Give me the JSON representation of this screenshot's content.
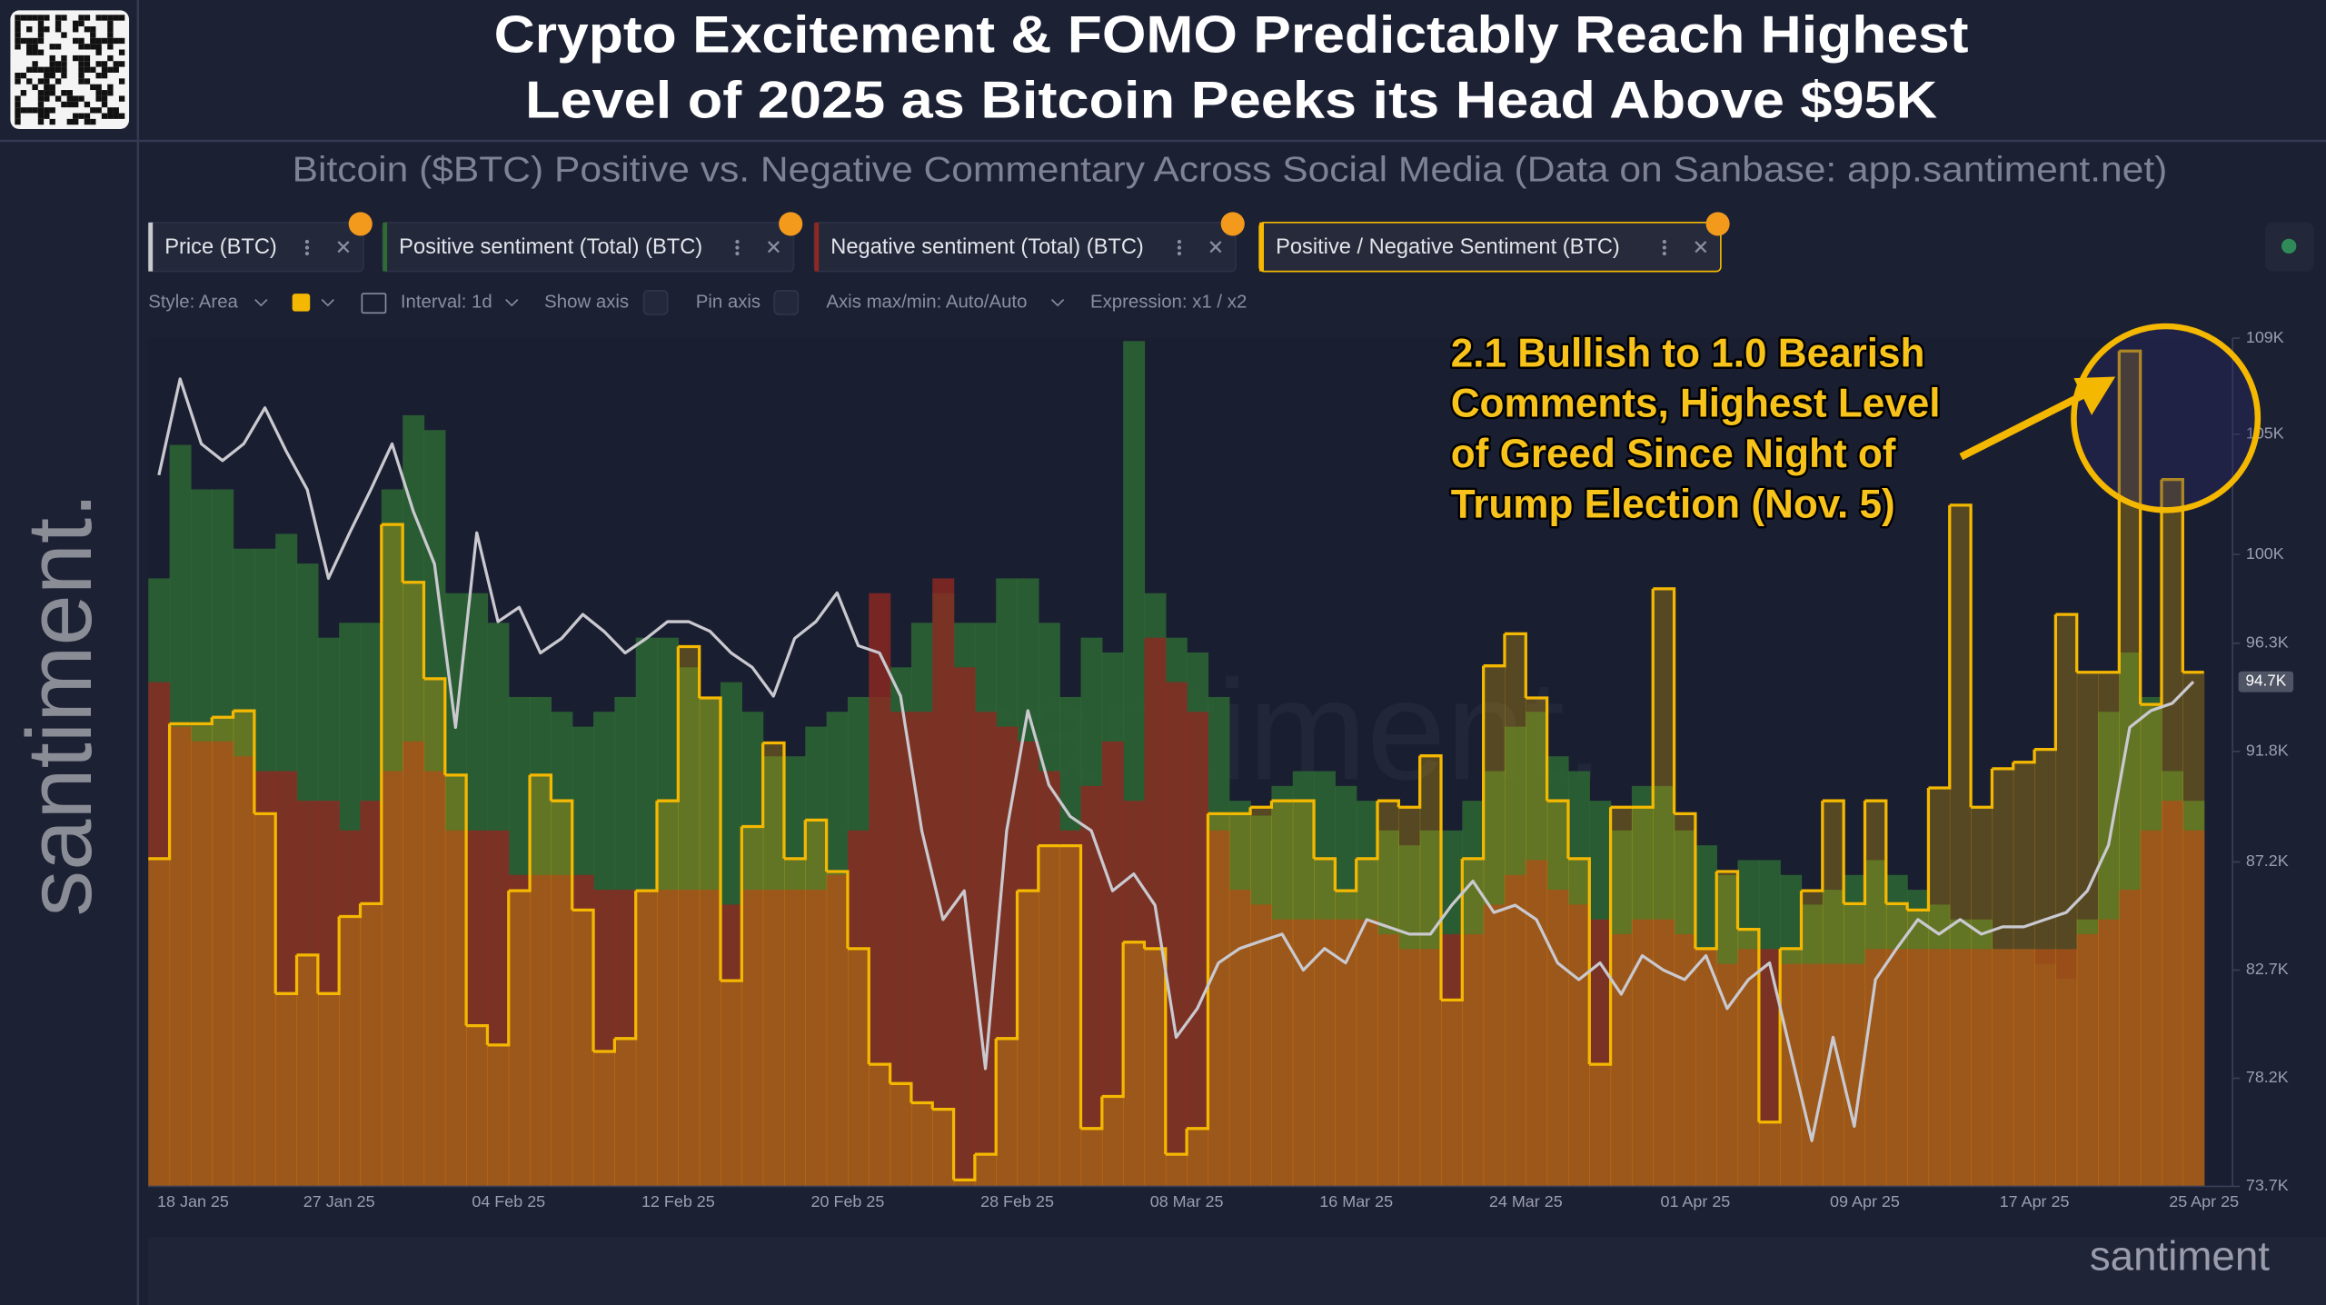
{
  "header": {
    "title_lines": [
      "Crypto Excitement & FOMO Predictably Reach Highest",
      "Level of 2025 as Bitcoin Peeks its Head Above $95K"
    ],
    "subtitle": "Bitcoin ($BTC) Positive vs. Negative Commentary Across Social Media (Data on Sanbase: app.santiment.net)"
  },
  "brand": {
    "side_logo": "santiment.",
    "watermark": "santiment.",
    "corner_logo": "santiment"
  },
  "toolbar": {
    "style": "Style: Area",
    "interval": "Interval: 1d",
    "show_axis": "Show axis",
    "pin_axis": "Pin axis",
    "axis_range": "Axis max/min: Auto/Auto",
    "expression": "Expression: x1 / x2"
  },
  "chart_data": {
    "type": "combo",
    "annotation_lines": [
      "2.1 Bullish to 1.0 Bearish",
      "Comments, Highest Level",
      "of Greed Since Night of",
      "Trump Election (Nov. 5)"
    ],
    "categories": [
      "18 Jan 25",
      null,
      null,
      null,
      null,
      null,
      null,
      null,
      null,
      "27 Jan 25",
      null,
      null,
      null,
      null,
      null,
      null,
      null,
      "04 Feb 25",
      null,
      null,
      null,
      null,
      null,
      null,
      null,
      "12 Feb 25",
      null,
      null,
      null,
      null,
      null,
      null,
      null,
      "20 Feb 25",
      null,
      null,
      null,
      null,
      null,
      null,
      null,
      "28 Feb 25",
      null,
      null,
      null,
      null,
      null,
      null,
      null,
      "08 Mar 25",
      null,
      null,
      null,
      null,
      null,
      null,
      null,
      "16 Mar 25",
      null,
      null,
      null,
      null,
      null,
      null,
      null,
      "24 Mar 25",
      null,
      null,
      null,
      null,
      null,
      null,
      null,
      "01 Apr 25",
      null,
      null,
      null,
      null,
      null,
      null,
      null,
      "09 Apr 25",
      null,
      null,
      null,
      null,
      null,
      null,
      null,
      "17 Apr 25",
      null,
      null,
      null,
      null,
      null,
      null,
      null,
      "25 Apr 25"
    ],
    "ylim": [
      73.7,
      109
    ],
    "yticks": [
      {
        "value": 73.7,
        "label": "73.7K"
      },
      {
        "value": 78.2,
        "label": "78.2K"
      },
      {
        "value": 82.7,
        "label": "82.7K"
      },
      {
        "value": 87.2,
        "label": "87.2K"
      },
      {
        "value": 91.8,
        "label": "91.8K"
      },
      {
        "value": 96.3,
        "label": "96.3K"
      },
      {
        "value": 100,
        "label": "100K"
      },
      {
        "value": 105,
        "label": "105K"
      },
      {
        "value": 109,
        "label": "109K"
      }
    ],
    "y2lim": [
      0.8,
      2.12
    ],
    "y3lim": [
      0,
      572
    ],
    "grid": false,
    "series": [
      {
        "name": "Price (BTC)",
        "type": "line",
        "axis": "y",
        "color": "#c9c9cf",
        "last_label": "94.7K",
        "values": [
          103.3,
          107.3,
          104.6,
          103.9,
          104.6,
          106.1,
          104.3,
          102.7,
          99.0,
          100.9,
          102.7,
          104.6,
          101.8,
          99.6,
          92.8,
          100.9,
          97.2,
          97.8,
          95.9,
          96.5,
          97.5,
          96.8,
          95.9,
          96.5,
          97.2,
          97.2,
          96.8,
          95.9,
          95.3,
          94.1,
          96.5,
          97.2,
          98.4,
          96.2,
          95.9,
          94.1,
          88.5,
          84.8,
          86.0,
          78.6,
          88.5,
          93.5,
          90.4,
          89.1,
          88.5,
          86.0,
          86.7,
          85.4,
          79.9,
          81.1,
          83.0,
          83.6,
          83.9,
          84.2,
          82.7,
          83.6,
          83.0,
          84.8,
          84.5,
          84.2,
          84.2,
          85.4,
          86.4,
          85.1,
          85.4,
          84.8,
          83.0,
          82.3,
          83.0,
          81.7,
          83.3,
          82.7,
          82.3,
          83.3,
          81.1,
          82.3,
          83.0,
          79.3,
          75.6,
          79.9,
          76.2,
          82.3,
          83.6,
          84.8,
          84.2,
          84.8,
          84.2,
          84.5,
          84.5,
          84.8,
          85.1,
          86.0,
          87.9,
          92.8,
          93.5,
          93.8,
          94.7,
          null
        ]
      },
      {
        "name": "Positive sentiment (Total) (BTC)",
        "type": "area",
        "axis": "y3",
        "color": "#2e6b35",
        "values": [
          410,
          500,
          470,
          470,
          430,
          430,
          440,
          420,
          370,
          380,
          380,
          470,
          520,
          510,
          400,
          400,
          380,
          330,
          330,
          320,
          310,
          320,
          330,
          370,
          370,
          350,
          330,
          340,
          320,
          290,
          290,
          310,
          320,
          330,
          330,
          350,
          380,
          400,
          380,
          380,
          410,
          410,
          380,
          330,
          370,
          360,
          570,
          400,
          370,
          360,
          330,
          260,
          250,
          270,
          280,
          280,
          270,
          260,
          240,
          230,
          240,
          240,
          260,
          280,
          310,
          320,
          290,
          280,
          260,
          240,
          270,
          270,
          240,
          230,
          210,
          220,
          220,
          210,
          190,
          200,
          210,
          220,
          210,
          200,
          190,
          180,
          180,
          160,
          160,
          150,
          140,
          180,
          320,
          360,
          330,
          280,
          260,
          null
        ]
      },
      {
        "name": "Negative sentiment (Total) (BTC)",
        "type": "area",
        "axis": "y3",
        "color": "#8f2822",
        "values": [
          340,
          310,
          300,
          300,
          290,
          280,
          280,
          260,
          260,
          240,
          260,
          280,
          300,
          280,
          240,
          240,
          240,
          210,
          210,
          210,
          210,
          200,
          200,
          200,
          200,
          200,
          200,
          190,
          200,
          200,
          200,
          200,
          210,
          240,
          400,
          320,
          320,
          410,
          350,
          320,
          310,
          300,
          280,
          240,
          270,
          300,
          260,
          370,
          340,
          320,
          240,
          200,
          190,
          180,
          180,
          180,
          180,
          180,
          170,
          160,
          160,
          170,
          170,
          190,
          210,
          220,
          200,
          190,
          180,
          170,
          180,
          180,
          170,
          160,
          150,
          160,
          160,
          150,
          150,
          150,
          150,
          160,
          160,
          160,
          160,
          160,
          160,
          160,
          160,
          160,
          160,
          170,
          180,
          200,
          240,
          260,
          240,
          null
        ]
      },
      {
        "name": "Positive / Negative Sentiment (BTC)",
        "type": "step",
        "axis": "y2",
        "color": "#f5b800",
        "values": [
          1.31,
          1.52,
          1.52,
          1.53,
          1.54,
          1.38,
          1.1,
          1.16,
          1.1,
          1.22,
          1.24,
          1.83,
          1.74,
          1.59,
          1.44,
          1.05,
          1.02,
          1.26,
          1.44,
          1.4,
          1.23,
          1.01,
          1.03,
          1.26,
          1.4,
          1.64,
          1.56,
          1.12,
          1.36,
          1.49,
          1.31,
          1.37,
          1.29,
          1.17,
          0.99,
          0.96,
          0.93,
          0.92,
          0.81,
          0.85,
          1.03,
          1.26,
          1.33,
          1.33,
          0.89,
          0.94,
          1.18,
          1.17,
          0.85,
          0.89,
          1.38,
          1.38,
          1.39,
          1.4,
          1.4,
          1.31,
          1.26,
          1.31,
          1.4,
          1.39,
          1.47,
          1.09,
          1.31,
          1.61,
          1.66,
          1.56,
          1.4,
          1.31,
          0.99,
          1.39,
          1.39,
          1.73,
          1.38,
          1.17,
          1.29,
          1.2,
          0.9,
          1.17,
          1.26,
          1.4,
          1.24,
          1.4,
          1.24,
          1.23,
          1.42,
          1.86,
          1.39,
          1.45,
          1.46,
          1.48,
          1.69,
          1.6,
          1.6,
          2.1,
          1.55,
          1.9,
          1.6,
          null
        ]
      }
    ]
  }
}
